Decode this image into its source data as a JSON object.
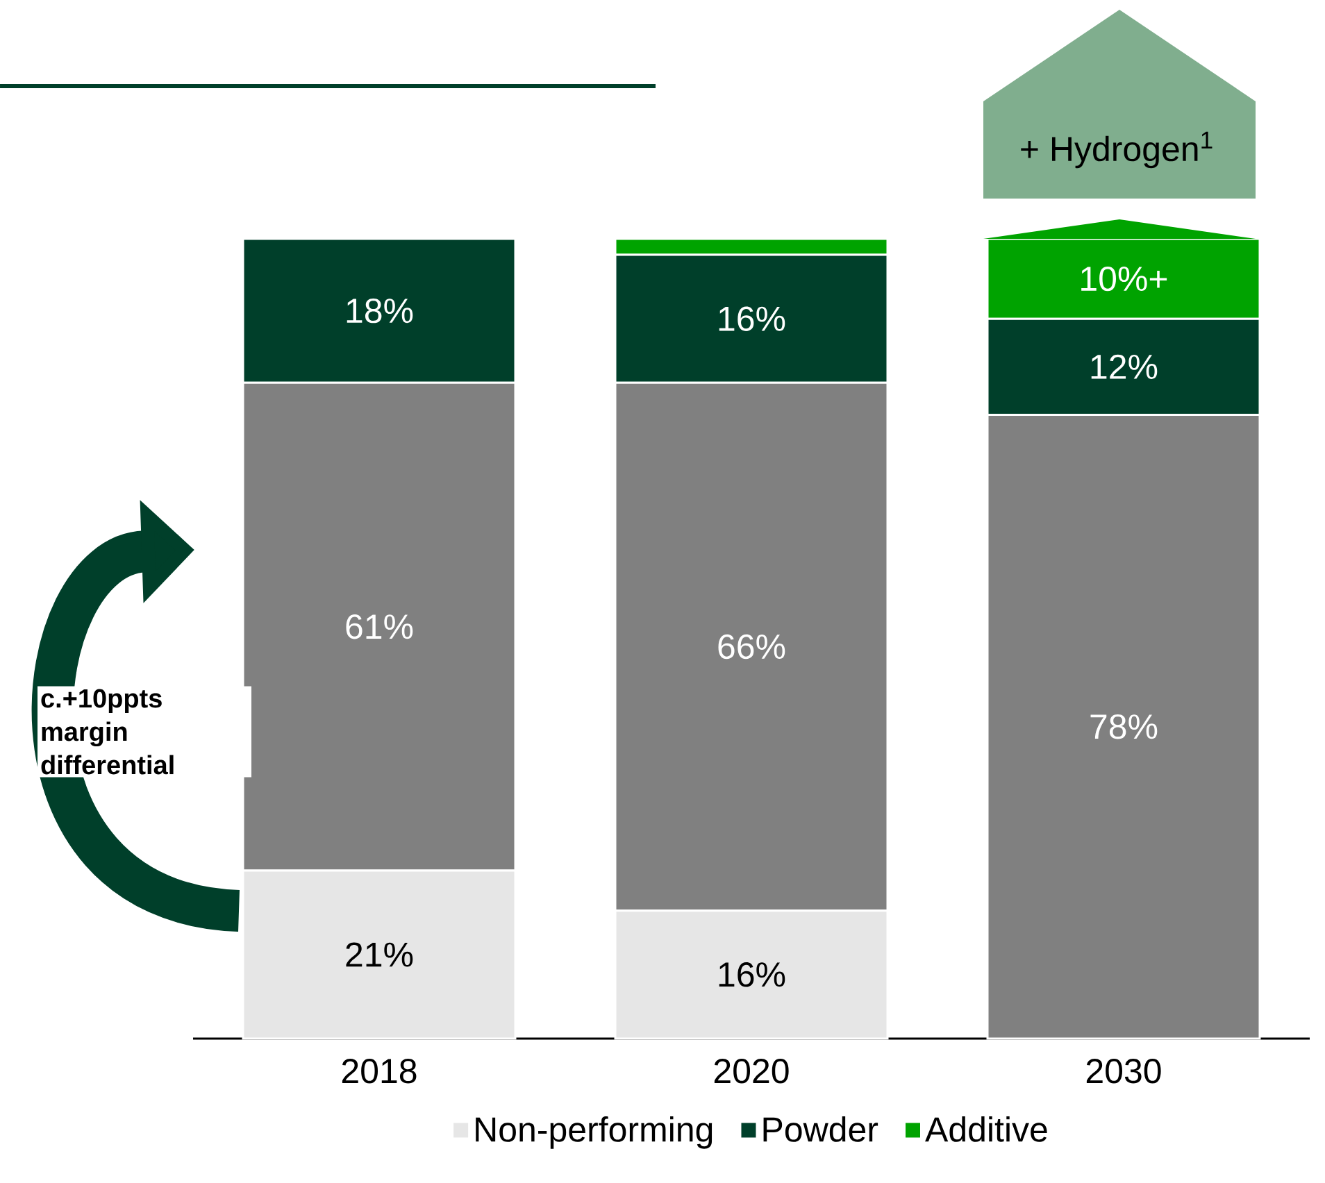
{
  "chart_data": {
    "type": "bar",
    "stacked": true,
    "categories": [
      "2018",
      "2020",
      "2030"
    ],
    "series": [
      {
        "name": "Non-performing",
        "color": "#e6e6e6",
        "values": [
          21,
          16,
          0
        ],
        "value_labels": [
          "21%",
          "16%",
          null
        ]
      },
      {
        "color": "#808080",
        "values": [
          61,
          66,
          78
        ],
        "value_labels": [
          "61%",
          "66%",
          "78%"
        ]
      },
      {
        "name": "Powder",
        "color": "#003f2a",
        "values": [
          18,
          16,
          12
        ],
        "value_labels": [
          "18%",
          "16%",
          "12%"
        ]
      },
      {
        "name": "Additive",
        "color": "#00a300",
        "values": [
          0,
          2,
          10
        ],
        "value_labels": [
          null,
          null,
          "10%+"
        ]
      }
    ],
    "annotations": [
      "+ Hydrogen$^{1}$",
      "c.+10ppts margin differential"
    ],
    "legend": "bottom"
  }
}
